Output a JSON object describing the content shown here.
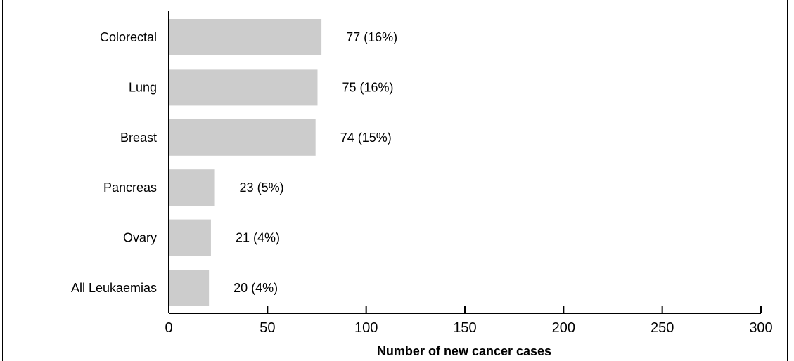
{
  "chart_data": {
    "type": "bar",
    "orientation": "horizontal",
    "categories": [
      "Colorectal",
      "Lung",
      "Breast",
      "Pancreas",
      "Ovary",
      "All Leukaemias"
    ],
    "values": [
      77,
      75,
      74,
      23,
      21,
      20
    ],
    "value_labels": [
      "77 (16%)",
      "75 (16%)",
      "74 (15%)",
      "23 (5%)",
      "21 (4%)",
      "20 (4%)"
    ],
    "xlabel": "Number of new cancer cases",
    "xlim": [
      0,
      300
    ],
    "xticks": [
      0,
      50,
      100,
      150,
      200,
      250,
      300
    ],
    "bar_color": "#cccccc",
    "grid": false
  }
}
